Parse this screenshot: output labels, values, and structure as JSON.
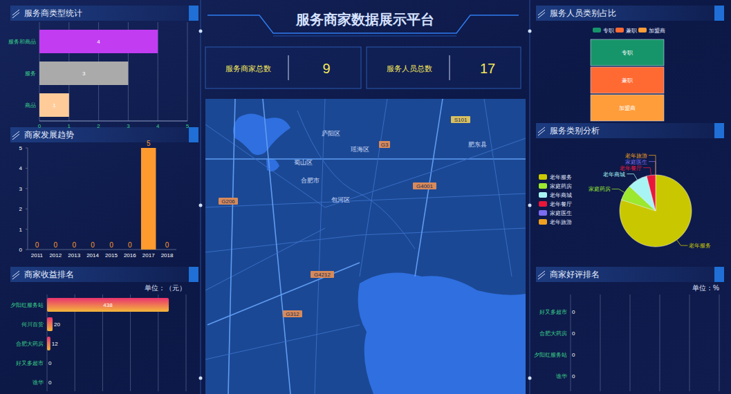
{
  "title": "服务商家数据展示平台",
  "kpis": [
    {
      "label": "服务商家总数",
      "value": 9
    },
    {
      "label": "服务人员总数",
      "value": 17
    }
  ],
  "map": {
    "labels": [
      "合肥市",
      "庐阳区",
      "瑶海区",
      "蜀山区",
      "包河区",
      "肥东县",
      "G4001",
      "G206",
      "G312",
      "G3",
      "S101",
      "G4212"
    ]
  },
  "chart_data": [
    {
      "type": "bar",
      "title": "服务商类型统计",
      "orientation": "horizontal",
      "categories": [
        "服务和商品",
        "服务",
        "商品"
      ],
      "values": [
        4,
        3,
        1
      ],
      "colors": [
        "#c23cf2",
        "#aaaaaa",
        "#ffcc99"
      ],
      "xlim": [
        0,
        5
      ],
      "xticks": [
        0,
        1,
        2,
        3,
        4,
        5
      ],
      "grid": true,
      "data_labels": true
    },
    {
      "type": "bar",
      "title": "商家发展趋势",
      "categories": [
        "2011",
        "2012",
        "2013",
        "2014",
        "2015",
        "2016",
        "2017",
        "2018"
      ],
      "values": [
        0,
        0,
        0,
        0,
        0,
        0,
        5,
        0
      ],
      "color": "#ff9a2e",
      "ylim": [
        0,
        5
      ],
      "yticks": [
        0,
        1,
        2,
        3,
        4,
        5
      ],
      "data_labels": true
    },
    {
      "type": "bar",
      "title": "商家收益排名",
      "subtitle": "单位：（元）",
      "orientation": "horizontal",
      "categories": [
        "夕阳红服务站",
        "何川百货",
        "合肥大药房",
        "好又多超市",
        "谯华"
      ],
      "values": [
        438,
        20,
        12,
        0,
        0
      ],
      "color": "#e8336f",
      "xlim": [
        0,
        500
      ],
      "xticks": [
        0,
        100,
        200,
        300,
        400,
        500
      ],
      "grid": true,
      "tick_labels": "y",
      "data_labels": true
    },
    {
      "type": "funnel",
      "title": "服务人员类别占比",
      "categories": [
        "专职",
        "兼职",
        "加盟商"
      ],
      "values": [
        1,
        1,
        1
      ],
      "colors": [
        "#17956a",
        "#ff6a33",
        "#ff9d3a"
      ],
      "legend": "top"
    },
    {
      "type": "pie",
      "title": "服务类别分析",
      "categories": [
        "老年服务",
        "家庭药房",
        "老年商城",
        "老年餐厅",
        "家庭医生",
        "老年旅游"
      ],
      "values": [
        80,
        7,
        9,
        4,
        0,
        0
      ],
      "colors": [
        "#c9c800",
        "#9be82e",
        "#a8f4f4",
        "#e8173a",
        "#7b6cf0",
        "#f0a020"
      ],
      "legend": "left"
    },
    {
      "type": "bar",
      "title": "商家好评排名",
      "subtitle": "单位：%",
      "orientation": "horizontal",
      "categories": [
        "好又多超市",
        "合肥大药房",
        "夕阳红服务站",
        "谯华"
      ],
      "values": [
        0,
        0,
        0,
        0
      ],
      "color": "#3ad08a",
      "xlim": [
        0,
        100
      ],
      "xticks": [
        0,
        20,
        40,
        60,
        80,
        100
      ],
      "grid": true,
      "tick_labels": "y",
      "data_labels": true
    }
  ]
}
